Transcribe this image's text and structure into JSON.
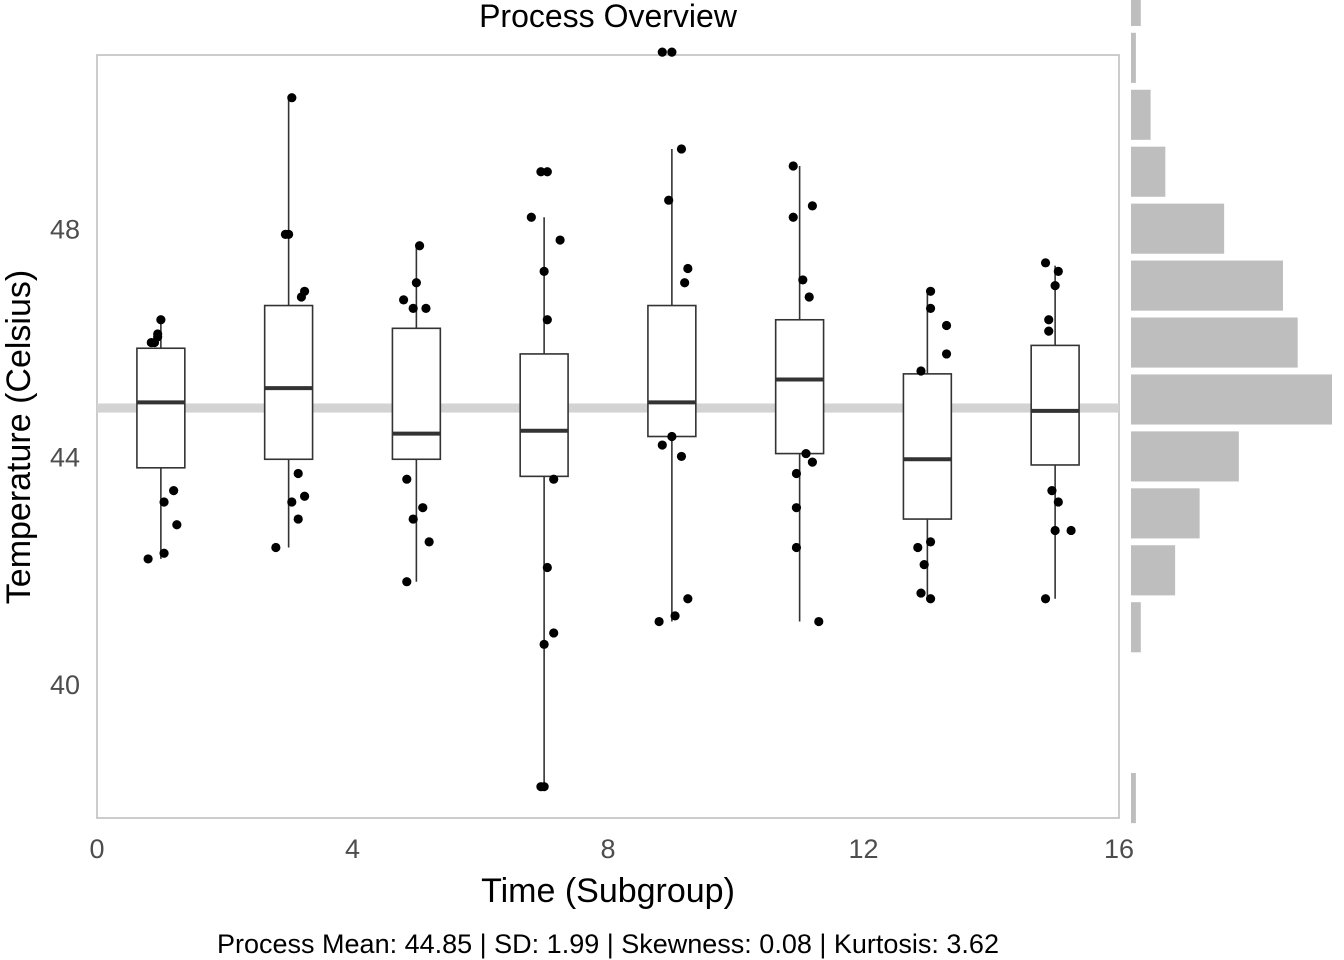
{
  "chart_data": {
    "type": "boxplot",
    "title": "Process Overview",
    "xlabel": "Time (Subgroup)",
    "ylabel": "Temperature (Celsius)",
    "caption": "Process Mean: 44.85 | SD: 1.99 | Skewness: 0.08 | Kurtosis: 3.62",
    "xlim": [
      0,
      16
    ],
    "ylim": [
      37.65,
      51.05
    ],
    "x_ticks": [
      0,
      4,
      8,
      12,
      16
    ],
    "y_ticks": [
      40,
      44,
      48
    ],
    "process_mean": 44.85,
    "mean_band_halfwidth": 0.08,
    "grid": false,
    "colors": {
      "box_fill": "#ffffff",
      "box_line": "#333333",
      "point": "#000000",
      "mean_band": "#d3d3d3",
      "histogram": "#bebebe",
      "frame": "#bfbfbf"
    },
    "boxes": [
      {
        "x": 1,
        "q1": 43.8,
        "median": 44.95,
        "q3": 45.9,
        "whisker_low": 42.2,
        "whisker_high": 46.4,
        "points": [
          [
            0.8,
            42.2
          ],
          [
            1.05,
            42.3
          ],
          [
            1.25,
            42.8
          ],
          [
            1.2,
            43.4
          ],
          [
            1.05,
            43.2
          ],
          [
            0.9,
            46.0
          ],
          [
            0.95,
            46.1
          ],
          [
            0.95,
            46.15
          ],
          [
            1.0,
            46.4
          ],
          [
            0.85,
            46.0
          ]
        ]
      },
      {
        "x": 3,
        "q1": 43.95,
        "median": 45.2,
        "q3": 46.65,
        "whisker_low": 42.4,
        "whisker_high": 50.3,
        "points": [
          [
            2.8,
            42.4
          ],
          [
            3.15,
            42.9
          ],
          [
            3.05,
            43.2
          ],
          [
            3.25,
            43.3
          ],
          [
            3.15,
            43.7
          ],
          [
            2.95,
            47.9
          ],
          [
            3.0,
            47.9
          ],
          [
            3.2,
            46.8
          ],
          [
            3.25,
            46.9
          ],
          [
            3.05,
            50.3
          ]
        ]
      },
      {
        "x": 5,
        "q1": 43.95,
        "median": 44.4,
        "q3": 46.25,
        "whisker_low": 41.8,
        "whisker_high": 47.7,
        "points": [
          [
            4.85,
            41.8
          ],
          [
            5.2,
            42.5
          ],
          [
            4.95,
            42.9
          ],
          [
            5.1,
            43.1
          ],
          [
            4.85,
            43.6
          ],
          [
            4.8,
            46.75
          ],
          [
            4.95,
            46.6
          ],
          [
            5.0,
            47.05
          ],
          [
            5.15,
            46.6
          ],
          [
            5.05,
            47.7
          ]
        ]
      },
      {
        "x": 7,
        "q1": 43.65,
        "median": 44.45,
        "q3": 45.8,
        "whisker_low": 38.2,
        "whisker_high": 48.2,
        "points": [
          [
            6.95,
            38.2
          ],
          [
            7.0,
            38.2
          ],
          [
            7.0,
            40.7
          ],
          [
            7.15,
            40.9
          ],
          [
            7.05,
            42.05
          ],
          [
            7.15,
            43.6
          ],
          [
            6.8,
            48.2
          ],
          [
            7.0,
            47.25
          ],
          [
            7.05,
            46.4
          ],
          [
            7.25,
            47.8
          ],
          [
            6.95,
            49.0
          ],
          [
            7.05,
            49.0
          ]
        ]
      },
      {
        "x": 9,
        "q1": 44.35,
        "median": 44.95,
        "q3": 46.65,
        "whisker_low": 41.1,
        "whisker_high": 49.4,
        "points": [
          [
            8.8,
            41.1
          ],
          [
            9.05,
            41.2
          ],
          [
            9.25,
            41.5
          ],
          [
            8.85,
            44.2
          ],
          [
            9.15,
            44.0
          ],
          [
            9.0,
            44.35
          ],
          [
            8.95,
            48.5
          ],
          [
            9.15,
            49.4
          ],
          [
            9.2,
            47.05
          ],
          [
            9.25,
            47.3
          ],
          [
            8.85,
            51.1
          ],
          [
            9.0,
            51.1
          ]
        ]
      },
      {
        "x": 11,
        "q1": 44.05,
        "median": 45.35,
        "q3": 46.4,
        "whisker_low": 41.1,
        "whisker_high": 49.1,
        "points": [
          [
            10.95,
            42.4
          ],
          [
            10.95,
            43.1
          ],
          [
            10.95,
            43.7
          ],
          [
            11.3,
            41.1
          ],
          [
            11.1,
            44.05
          ],
          [
            11.2,
            43.9
          ],
          [
            10.9,
            48.2
          ],
          [
            11.2,
            48.4
          ],
          [
            11.05,
            47.1
          ],
          [
            11.15,
            46.8
          ],
          [
            10.9,
            49.1
          ]
        ]
      },
      {
        "x": 13,
        "q1": 42.9,
        "median": 43.95,
        "q3": 45.45,
        "whisker_low": 41.5,
        "whisker_high": 46.9,
        "points": [
          [
            12.9,
            41.6
          ],
          [
            13.05,
            41.5
          ],
          [
            12.95,
            42.1
          ],
          [
            13.05,
            42.5
          ],
          [
            12.85,
            42.4
          ],
          [
            12.9,
            45.5
          ],
          [
            13.3,
            45.8
          ],
          [
            13.3,
            46.3
          ],
          [
            13.05,
            46.6
          ],
          [
            13.05,
            46.9
          ]
        ]
      },
      {
        "x": 15,
        "q1": 43.85,
        "median": 44.8,
        "q3": 45.95,
        "whisker_low": 41.5,
        "whisker_high": 47.35,
        "points": [
          [
            14.85,
            41.5
          ],
          [
            15.0,
            42.7
          ],
          [
            15.25,
            42.7
          ],
          [
            15.05,
            43.2
          ],
          [
            14.95,
            43.4
          ],
          [
            14.9,
            46.2
          ],
          [
            14.9,
            46.4
          ],
          [
            15.0,
            47.0
          ],
          [
            14.85,
            47.4
          ],
          [
            15.05,
            47.25
          ]
        ]
      }
    ],
    "histogram": {
      "bin_width": 1,
      "bins": [
        {
          "center": 38.0,
          "count": 1
        },
        {
          "center": 41.0,
          "count": 2
        },
        {
          "center": 42.0,
          "count": 9
        },
        {
          "center": 43.0,
          "count": 14
        },
        {
          "center": 44.0,
          "count": 22
        },
        {
          "center": 45.0,
          "count": 41
        },
        {
          "center": 46.0,
          "count": 34
        },
        {
          "center": 47.0,
          "count": 31
        },
        {
          "center": 48.0,
          "count": 19
        },
        {
          "center": 49.0,
          "count": 7
        },
        {
          "center": 50.0,
          "count": 4
        },
        {
          "center": 51.0,
          "count": 1
        },
        {
          "center": 52.0,
          "count": 2
        }
      ]
    }
  }
}
